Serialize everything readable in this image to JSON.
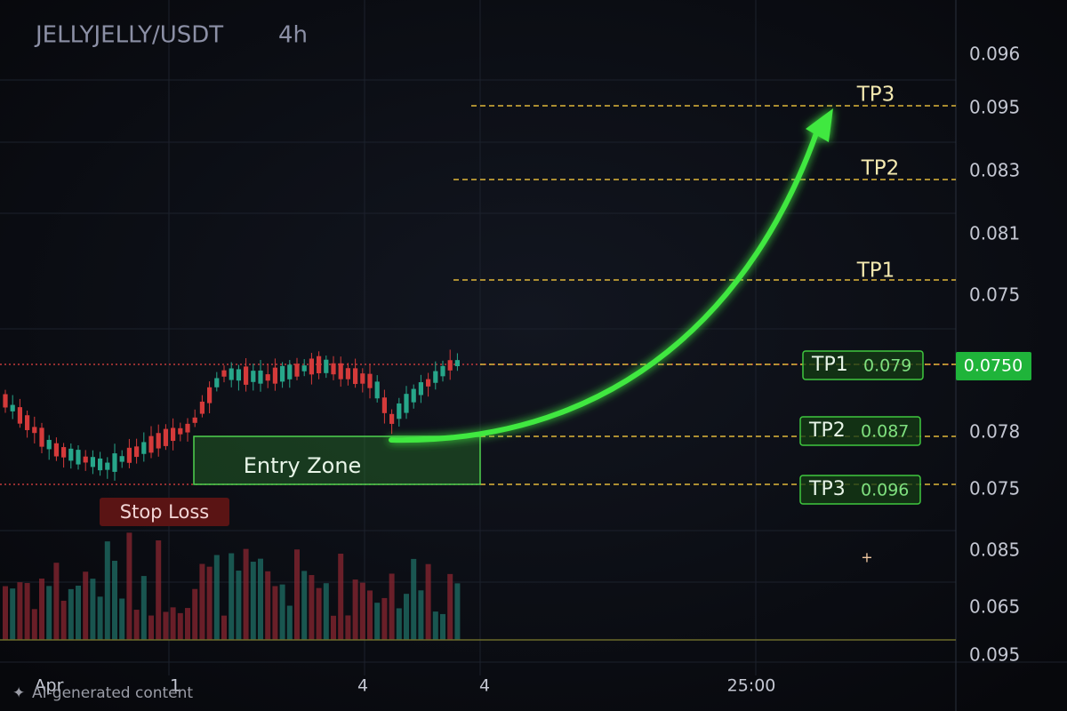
{
  "header": {
    "pair": "JELLYJELLY/USDT",
    "timeframe": "4h"
  },
  "price_axis": [
    "0.096",
    "0.095",
    "0.083",
    "0.081",
    "0.075",
    "0.078",
    "0.075",
    "0.085",
    "0.065",
    "0.095"
  ],
  "current_price": "0.0750",
  "time_axis": [
    "Apr",
    "1",
    "4",
    "4",
    "25:00"
  ],
  "target_lines": [
    "TP3",
    "TP2",
    "TP1"
  ],
  "target_boxes": [
    {
      "label": "TP1",
      "price": "0.079"
    },
    {
      "label": "TP2",
      "price": "0.087"
    },
    {
      "label": "TP3",
      "price": "0.096"
    }
  ],
  "entry_zone": "Entry Zone",
  "stop_loss": "Stop Loss",
  "watermark": "AI-generated content"
}
